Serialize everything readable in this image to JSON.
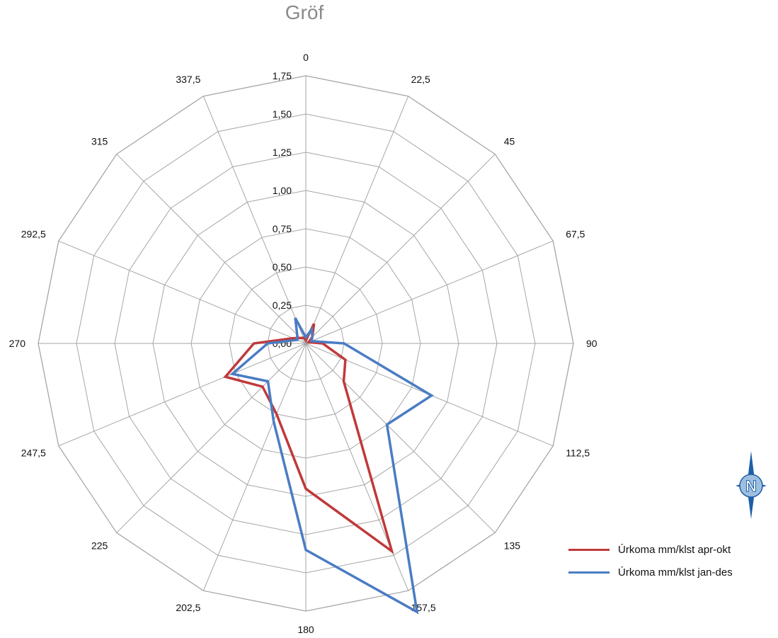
{
  "chart_data": {
    "type": "radar",
    "title": "Gröf",
    "categories": [
      "0",
      "22,5",
      "45",
      "67,5",
      "90",
      "112,5",
      "135",
      "157,5",
      "180",
      "202,5",
      "225",
      "247,5",
      "270",
      "292,5",
      "315",
      "337,5"
    ],
    "tick_labels": [
      "0,00",
      "0,25",
      "0,50",
      "0,75",
      "1,00",
      "1,25",
      "1,50",
      "1,75"
    ],
    "rlim": [
      0,
      1.75
    ],
    "grid": true,
    "legend_position": "bottom-right",
    "series": [
      {
        "name": "Úrkoma mm/klst apr-okt",
        "color": "#c0393b",
        "values": [
          0.02,
          0.14,
          0.06,
          0.02,
          0.11,
          0.28,
          0.35,
          1.47,
          0.95,
          0.5,
          0.4,
          0.57,
          0.34,
          0.09,
          0.05,
          0.04
        ]
      },
      {
        "name": "Úrkoma mm/klst jan-des",
        "color": "#4a7cc4",
        "values": [
          0.04,
          0.1,
          0.06,
          0.04,
          0.25,
          0.89,
          0.75,
          1.9,
          1.35,
          0.55,
          0.35,
          0.52,
          0.25,
          0.06,
          0.08,
          0.18
        ]
      }
    ]
  },
  "icons": {
    "compass": "north-arrow-icon",
    "compass_letter": "N"
  }
}
